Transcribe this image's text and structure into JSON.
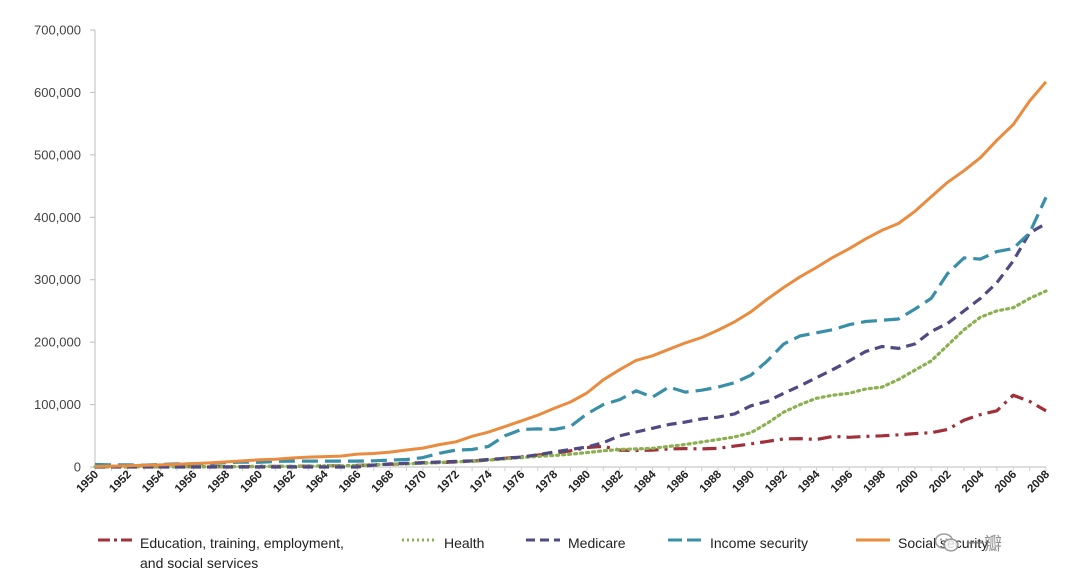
{
  "chart_data": {
    "type": "line",
    "x": [
      1950,
      1951,
      1952,
      1953,
      1954,
      1955,
      1956,
      1957,
      1958,
      1959,
      1960,
      1961,
      1962,
      1963,
      1964,
      1965,
      1966,
      1967,
      1968,
      1969,
      1970,
      1971,
      1972,
      1973,
      1974,
      1975,
      1976,
      1977,
      1978,
      1979,
      1980,
      1981,
      1982,
      1983,
      1984,
      1985,
      1986,
      1987,
      1988,
      1989,
      1990,
      1991,
      1992,
      1993,
      1994,
      1995,
      1996,
      1997,
      1998,
      1999,
      2000,
      2001,
      2002,
      2003,
      2004,
      2005,
      2006,
      2007,
      2008
    ],
    "x_tick_labels": [
      "1950",
      "1952",
      "1954",
      "1956",
      "1958",
      "1960",
      "1962",
      "1964",
      "1966",
      "1968",
      "1970",
      "1972",
      "1974",
      "1976",
      "1978",
      "1980",
      "1982",
      "1984",
      "1986",
      "1988",
      "1990",
      "1992",
      "1994",
      "1996",
      "1998",
      "2000",
      "2002",
      "2004",
      "2006",
      "2008"
    ],
    "ylim": [
      0,
      700000
    ],
    "y_ticks": [
      0,
      100000,
      200000,
      300000,
      400000,
      500000,
      600000,
      700000
    ],
    "y_tick_labels": [
      "0",
      "100,000",
      "200,000",
      "300,000",
      "400,000",
      "500,000",
      "600,000",
      "700,000"
    ],
    "grid": false,
    "legend_position": "bottom",
    "series": [
      {
        "name": "Education, training, employment,\nand social services",
        "color": "#a0303a",
        "dash": "long-dash-dot",
        "values": [
          300,
          300,
          400,
          400,
          400,
          500,
          500,
          600,
          600,
          700,
          1000,
          1000,
          1200,
          1500,
          1700,
          2000,
          2500,
          3600,
          4400,
          5100,
          6500,
          7000,
          8000,
          9500,
          11000,
          14000,
          16000,
          19000,
          22000,
          26000,
          31000,
          33000,
          27000,
          26500,
          27000,
          29000,
          29500,
          29000,
          30000,
          33500,
          37000,
          41000,
          45000,
          45500,
          44000,
          49000,
          47500,
          49000,
          50000,
          51500,
          53500,
          55000,
          60000,
          75000,
          84000,
          90000,
          115000,
          105000,
          90000
        ]
      },
      {
        "name": "Health",
        "color": "#8ab050",
        "dash": "dotted",
        "values": [
          300,
          300,
          300,
          300,
          300,
          300,
          400,
          400,
          500,
          700,
          800,
          900,
          1100,
          1200,
          1700,
          1800,
          2500,
          3400,
          4600,
          5200,
          6000,
          7000,
          8500,
          9000,
          11000,
          13000,
          15000,
          17000,
          18500,
          20500,
          23000,
          26000,
          28000,
          29000,
          30000,
          33000,
          36000,
          40000,
          44000,
          48000,
          55000,
          70000,
          88000,
          100000,
          110000,
          115000,
          118000,
          125000,
          128000,
          140000,
          155000,
          170000,
          195000,
          220000,
          240000,
          250000,
          255000,
          270000,
          282000
        ]
      },
      {
        "name": "Medicare",
        "color": "#4f4a82",
        "dash": "dashed",
        "values": [
          0,
          0,
          0,
          0,
          0,
          0,
          0,
          0,
          0,
          0,
          0,
          0,
          0,
          0,
          0,
          0,
          0,
          3000,
          5000,
          6000,
          7000,
          8000,
          9000,
          10000,
          12000,
          14000,
          16000,
          19500,
          24000,
          28000,
          32000,
          39000,
          50000,
          56000,
          62000,
          68000,
          72000,
          77000,
          80000,
          85000,
          98000,
          105000,
          118000,
          130000,
          143000,
          156000,
          170000,
          185000,
          193000,
          190000,
          197000,
          217000,
          230000,
          250000,
          270000,
          295000,
          330000,
          375000,
          390000
        ]
      },
      {
        "name": "Income security",
        "color": "#3a8fa8",
        "dash": "long-dash",
        "values": [
          4000,
          3500,
          3500,
          3000,
          4000,
          5000,
          5000,
          5500,
          7000,
          8000,
          7500,
          9000,
          9500,
          9500,
          9500,
          9500,
          9500,
          10000,
          11000,
          12000,
          15000,
          22000,
          27000,
          28000,
          33000,
          50000,
          60000,
          61000,
          60000,
          65000,
          85000,
          100000,
          108000,
          122000,
          112000,
          128000,
          120000,
          123000,
          128000,
          135000,
          147000,
          170000,
          197000,
          210000,
          215000,
          220000,
          228000,
          233000,
          235000,
          237000,
          253000,
          270000,
          310000,
          335000,
          333000,
          345000,
          350000,
          375000,
          432000
        ]
      },
      {
        "name": "Social security",
        "color": "#e98c40",
        "dash": "solid",
        "values": [
          800,
          1500,
          2100,
          2700,
          3400,
          4400,
          5500,
          6600,
          8200,
          9700,
          11600,
          12500,
          14400,
          15800,
          16600,
          17500,
          20700,
          21700,
          23900,
          27300,
          30300,
          35900,
          40200,
          49100,
          55900,
          64700,
          73900,
          83000,
          93900,
          104100,
          118500,
          139600,
          155900,
          170700,
          178200,
          188600,
          198800,
          207400,
          219300,
          232500,
          248600,
          269000,
          287600,
          304600,
          319600,
          335800,
          349700,
          365300,
          379200,
          390000,
          409400,
          433000,
          456000,
          474700,
          495500,
          523300,
          548500,
          586200,
          617000
        ]
      }
    ]
  },
  "watermark": {
    "text": "一瓣"
  }
}
